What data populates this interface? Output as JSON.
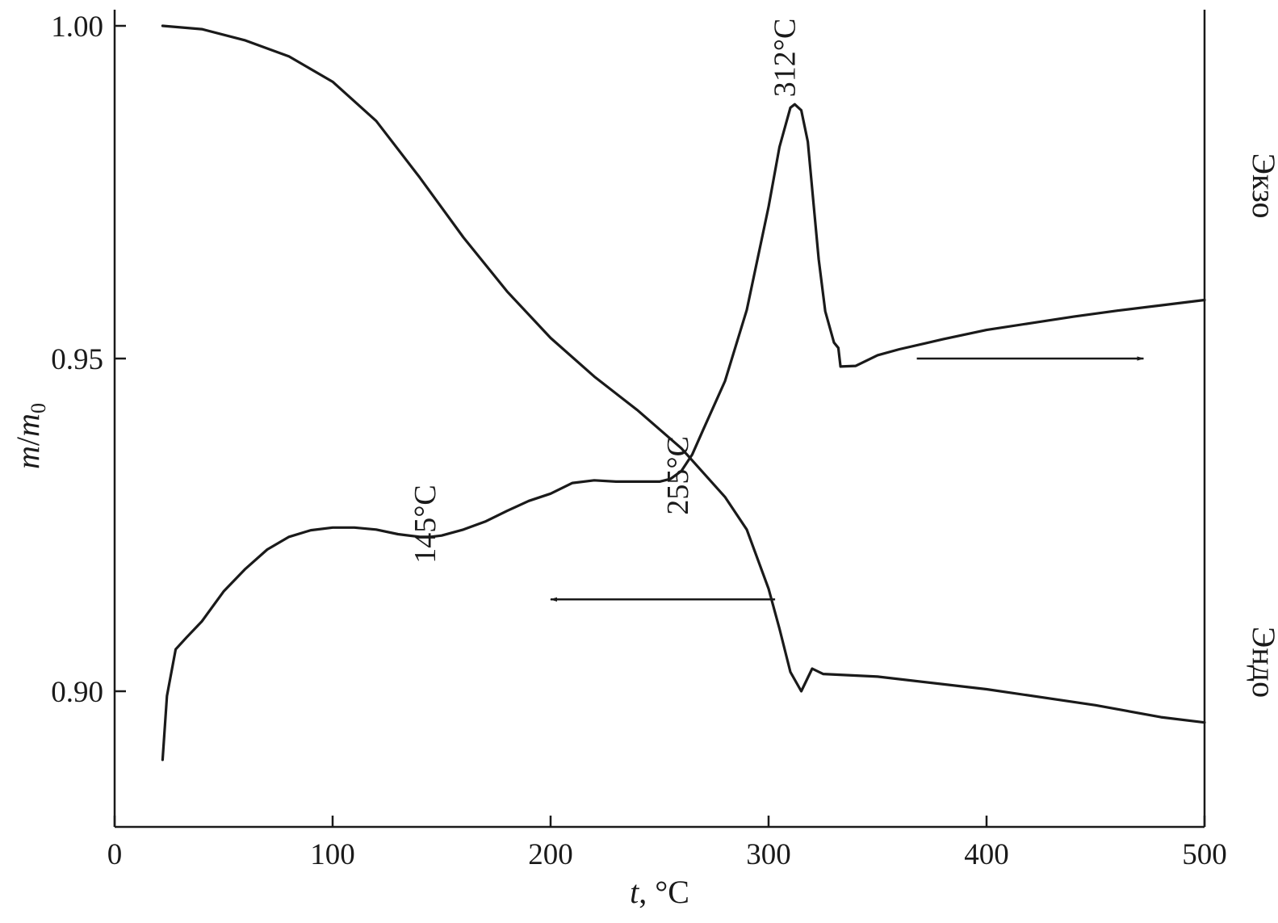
{
  "chart_data": {
    "type": "line",
    "x_axis": {
      "label_var": "t",
      "label_unit": ", °C",
      "range": [
        0,
        500
      ],
      "ticks": [
        "0",
        "100",
        "200",
        "300",
        "400",
        "500"
      ]
    },
    "y_axis": {
      "label_m": "m",
      "label_slash": "/",
      "label_m0": "m",
      "label_sub": "0",
      "range": [
        0.88,
        1.0
      ],
      "ticks": [
        "0.90",
        "0.95",
        "1.00"
      ]
    },
    "right_axis": {
      "exo_label": "Экзо",
      "endo_label": "Эндо"
    },
    "grid": false,
    "series": [
      {
        "role": "mass",
        "x": [
          22,
          40,
          60,
          80,
          100,
          120,
          140,
          160,
          180,
          200,
          220,
          240,
          260,
          280,
          290,
          300,
          305,
          310,
          315,
          320,
          325,
          350,
          400,
          450,
          480,
          500
        ],
        "y": [
          1.0,
          0.9995,
          0.9978,
          0.9954,
          0.9916,
          0.9857,
          0.9772,
          0.9682,
          0.9601,
          0.9531,
          0.9473,
          0.9422,
          0.9365,
          0.9292,
          0.9243,
          0.9154,
          0.9094,
          0.9029,
          0.9,
          0.9034,
          0.9026,
          0.9022,
          0.9003,
          0.8979,
          0.8961,
          0.8953
        ]
      },
      {
        "role": "dta",
        "x": [
          22,
          24,
          28,
          33,
          40,
          50,
          60,
          70,
          80,
          90,
          100,
          110,
          120,
          130,
          140,
          145,
          150,
          160,
          170,
          180,
          190,
          200,
          210,
          220,
          230,
          240,
          250,
          255,
          260,
          265,
          270,
          280,
          290,
          300,
          305,
          310,
          312,
          315,
          318,
          320,
          323,
          326,
          330,
          332,
          333,
          340,
          350,
          360,
          380,
          400,
          420,
          440,
          460,
          480,
          500
        ],
        "y": [
          0.8897,
          0.8993,
          0.9063,
          0.9081,
          0.9105,
          0.915,
          0.9184,
          0.9213,
          0.9232,
          0.9242,
          0.9246,
          0.9246,
          0.9243,
          0.9236,
          0.9232,
          0.9232,
          0.9234,
          0.9243,
          0.9255,
          0.9271,
          0.9286,
          0.9297,
          0.9313,
          0.9317,
          0.9315,
          0.9315,
          0.9315,
          0.9319,
          0.9331,
          0.9356,
          0.9393,
          0.9466,
          0.9573,
          0.9728,
          0.9818,
          0.9877,
          0.9882,
          0.9873,
          0.9826,
          0.9755,
          0.9649,
          0.9571,
          0.9524,
          0.9516,
          0.9488,
          0.9489,
          0.9505,
          0.9514,
          0.9529,
          0.9543,
          0.9553,
          0.9563,
          0.9572,
          0.958,
          0.9588
        ]
      }
    ],
    "annotations": [
      {
        "text": "312°C",
        "x": 312,
        "y": 0.9893,
        "rotate": -90
      },
      {
        "text": "255°C",
        "x": 263,
        "y": 0.9265,
        "rotate": -90
      },
      {
        "text": "145°C",
        "x": 147,
        "y": 0.9192,
        "rotate": -90
      }
    ],
    "arrows": [
      {
        "points_to": "left-axis",
        "x_from": 303,
        "x_to": 200,
        "y": 0.9138
      },
      {
        "points_to": "right-axis",
        "x_from": 368,
        "x_to": 472,
        "y": 0.95
      }
    ]
  }
}
